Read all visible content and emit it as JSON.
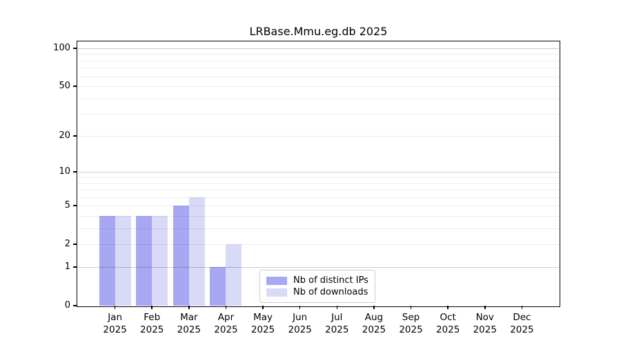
{
  "title": "LRBase.Mmu.eg.db 2025",
  "chart_data": {
    "type": "bar",
    "title": "LRBase.Mmu.eg.db 2025",
    "categories": [
      "Jan 2025",
      "Feb 2025",
      "Mar 2025",
      "Apr 2025",
      "May 2025",
      "Jun 2025",
      "Jul 2025",
      "Aug 2025",
      "Sep 2025",
      "Oct 2025",
      "Nov 2025",
      "Dec 2025"
    ],
    "months": [
      "Jan",
      "Feb",
      "Mar",
      "Apr",
      "May",
      "Jun",
      "Jul",
      "Aug",
      "Sep",
      "Oct",
      "Nov",
      "Dec"
    ],
    "year_label": "2025",
    "series": [
      {
        "name": "Nb of distinct IPs",
        "color": "#a7a7f2",
        "values": [
          4,
          4,
          5,
          1,
          0,
          0,
          0,
          0,
          0,
          0,
          0,
          0
        ]
      },
      {
        "name": "Nb of downloads",
        "color": "#d9d9f8",
        "values": [
          4,
          4,
          6,
          2,
          0,
          0,
          0,
          0,
          0,
          0,
          0,
          0
        ]
      }
    ],
    "yscale": "log1p",
    "ylim": [
      0,
      112
    ],
    "ytick_values": [
      0,
      1,
      2,
      5,
      10,
      20,
      50,
      100
    ],
    "grid": true,
    "grid_major_values": [
      1,
      10,
      100
    ],
    "grid_minor_values": [
      2,
      3,
      4,
      5,
      6,
      7,
      8,
      9,
      20,
      30,
      40,
      50,
      60,
      70,
      80,
      90
    ],
    "xlabel": "",
    "ylabel": "",
    "legend_position": "inside-bottom-center"
  },
  "colors": {
    "background": "#ffffff",
    "axis": "#000000",
    "grid_major": "rgba(0,0,0,0.20)",
    "grid_minor": "rgba(0,0,0,0.075)",
    "legend_border": "#cccccc"
  }
}
